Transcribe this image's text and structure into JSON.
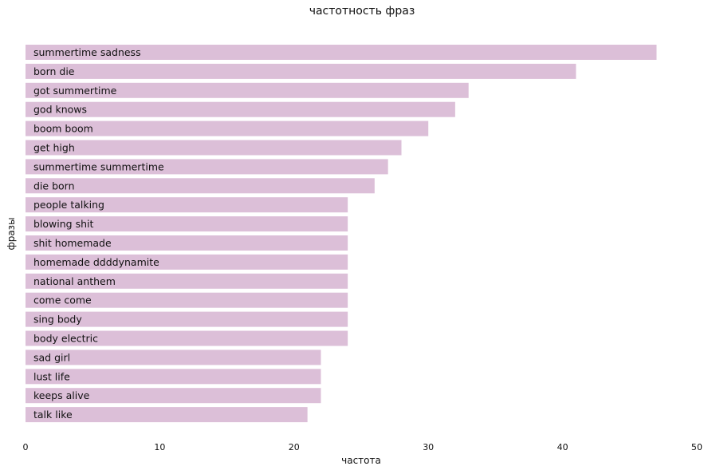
{
  "chart_data": {
    "type": "bar",
    "orientation": "horizontal",
    "title": "частотность фраз",
    "xlabel": "частота",
    "ylabel": "фразы",
    "xlim": [
      0,
      50
    ],
    "xticks": [
      0,
      10,
      20,
      30,
      40,
      50
    ],
    "grid": false,
    "bar_color": "#dcbfd8",
    "categories": [
      "summertime sadness",
      "born die",
      "got summertime",
      "god knows",
      "boom boom",
      "get high",
      "summertime summertime",
      "die born",
      "people talking",
      "blowing shit",
      "shit homemade",
      "homemade ddddynamite",
      "national anthem",
      "come come",
      "sing body",
      "body electric",
      "sad girl",
      "lust life",
      "keeps alive",
      "talk like"
    ],
    "values": [
      47,
      41,
      33,
      32,
      30,
      28,
      27,
      26,
      24,
      24,
      24,
      24,
      24,
      24,
      24,
      24,
      22,
      22,
      22,
      21
    ]
  }
}
